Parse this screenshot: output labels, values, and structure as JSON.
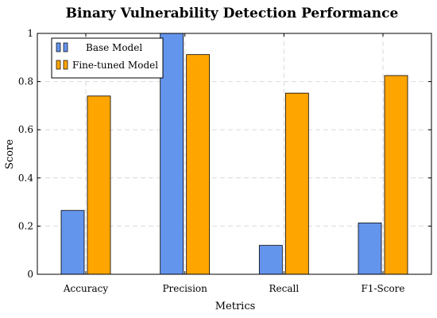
{
  "chart_data": {
    "type": "bar",
    "title": "Binary Vulnerability Detection Performance",
    "xlabel": "Metrics",
    "ylabel": "Score",
    "categories": [
      "Accuracy",
      "Precision",
      "Recall",
      "F1-Score"
    ],
    "series": [
      {
        "name": "Base Model",
        "values": [
          0.265,
          1.0,
          0.12,
          0.213
        ],
        "color": "#6495ED"
      },
      {
        "name": "Fine-tuned Model",
        "values": [
          0.74,
          0.912,
          0.752,
          0.825
        ],
        "color": "#FFA500"
      }
    ],
    "ylim": [
      0,
      1
    ],
    "yticks": [
      0,
      0.2,
      0.4,
      0.6,
      0.8,
      1
    ],
    "ytick_labels": [
      "0",
      "0.2",
      "0.4",
      "0.6",
      "0.8",
      "1"
    ],
    "grid": true,
    "grid_style": "dashed",
    "legend_position": "top-left"
  }
}
